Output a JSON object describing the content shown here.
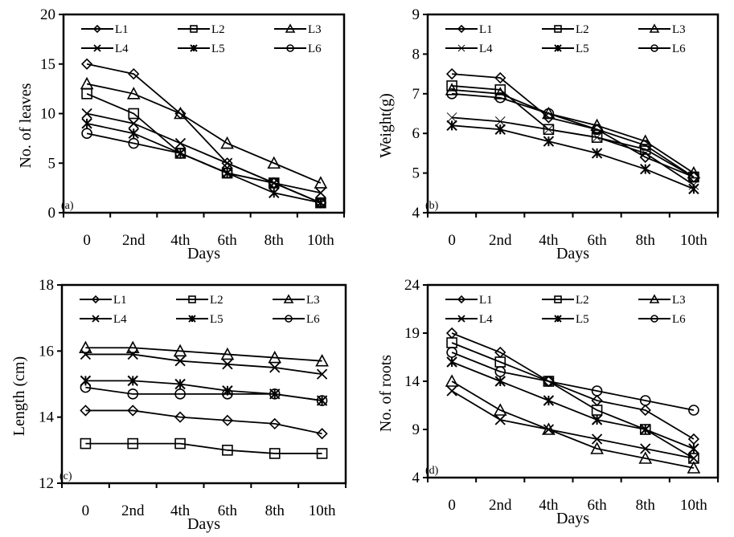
{
  "figure": {
    "panels": 4
  },
  "chart_data": [
    {
      "type": "line",
      "panel_label": "(a)",
      "title": "",
      "xlabel": "Days",
      "ylabel": "No. of leaves",
      "categories": [
        "0",
        "2nd",
        "4th",
        "6th",
        "8th",
        "10th"
      ],
      "ylim": [
        0,
        20
      ],
      "yticks": [
        "0",
        "5",
        "10",
        "15",
        "20"
      ],
      "ytick_values": [
        0,
        5,
        10,
        15,
        20
      ],
      "legend_position": "top",
      "grid": false,
      "series": [
        {
          "name": "L1",
          "marker": "diamond",
          "values": [
            15,
            14,
            10,
            5,
            3,
            1
          ]
        },
        {
          "name": "L2",
          "marker": "square",
          "values": [
            12,
            10,
            6,
            4,
            3,
            1
          ]
        },
        {
          "name": "L3",
          "marker": "triangle",
          "values": [
            13,
            12,
            10,
            7,
            5,
            3
          ]
        },
        {
          "name": "L4",
          "marker": "x",
          "values": [
            10,
            9,
            7,
            5,
            3,
            2
          ]
        },
        {
          "name": "L5",
          "marker": "asterisk",
          "values": [
            9,
            8,
            6,
            4,
            2,
            1
          ]
        },
        {
          "name": "L6",
          "marker": "circle",
          "values": [
            8,
            7,
            6,
            4,
            3,
            1
          ]
        }
      ]
    },
    {
      "type": "line",
      "panel_label": "(b)",
      "title": "",
      "xlabel": "Days",
      "ylabel": "Weight(g)",
      "categories": [
        "0",
        "2nd",
        "4th",
        "6th",
        "8th",
        "10th"
      ],
      "ylim": [
        4,
        9
      ],
      "yticks": [
        "4",
        "5",
        "6",
        "7",
        "8",
        "9"
      ],
      "ytick_values": [
        4,
        5,
        6,
        7,
        8,
        9
      ],
      "legend_position": "top",
      "grid": false,
      "series": [
        {
          "name": "L1",
          "marker": "diamond",
          "values": [
            7.5,
            7.4,
            6.4,
            6.1,
            5.4,
            4.9
          ]
        },
        {
          "name": "L2",
          "marker": "square",
          "values": [
            7.2,
            7.1,
            6.1,
            5.9,
            5.6,
            4.9
          ]
        },
        {
          "name": "L3",
          "marker": "triangle",
          "values": [
            7.1,
            7.0,
            6.5,
            6.2,
            5.8,
            5.0
          ]
        },
        {
          "name": "L4",
          "marker": "x-thin",
          "values": [
            6.4,
            6.3,
            6.1,
            5.9,
            5.5,
            4.7
          ]
        },
        {
          "name": "L5",
          "marker": "asterisk",
          "values": [
            6.2,
            6.1,
            5.8,
            5.5,
            5.1,
            4.6
          ]
        },
        {
          "name": "L6",
          "marker": "circle",
          "values": [
            7.0,
            6.9,
            6.5,
            6.1,
            5.7,
            4.9
          ]
        }
      ]
    },
    {
      "type": "line",
      "panel_label": "(c)",
      "title": "",
      "xlabel": "Days",
      "ylabel": "Length (cm)",
      "categories": [
        "0",
        "2nd",
        "4th",
        "6th",
        "8th",
        "10th"
      ],
      "ylim": [
        12,
        18
      ],
      "yticks": [
        "12",
        "14",
        "16",
        "18"
      ],
      "ytick_values": [
        12,
        14,
        16,
        18
      ],
      "legend_position": "top",
      "grid": false,
      "series": [
        {
          "name": "L1",
          "marker": "diamond",
          "values": [
            14.2,
            14.2,
            14.0,
            13.9,
            13.8,
            13.5
          ]
        },
        {
          "name": "L2",
          "marker": "square",
          "values": [
            13.2,
            13.2,
            13.2,
            13.0,
            12.9,
            12.9
          ]
        },
        {
          "name": "L3",
          "marker": "triangle",
          "values": [
            16.1,
            16.1,
            16.0,
            15.9,
            15.8,
            15.7
          ]
        },
        {
          "name": "L4",
          "marker": "x",
          "values": [
            15.9,
            15.9,
            15.7,
            15.6,
            15.5,
            15.3
          ]
        },
        {
          "name": "L5",
          "marker": "asterisk",
          "values": [
            15.1,
            15.1,
            15.0,
            14.8,
            14.7,
            14.5
          ]
        },
        {
          "name": "L6",
          "marker": "circle",
          "values": [
            14.9,
            14.7,
            14.7,
            14.7,
            14.7,
            14.5
          ]
        }
      ]
    },
    {
      "type": "line",
      "panel_label": "(d)",
      "title": "",
      "xlabel": "Days",
      "ylabel": "No. of roots",
      "categories": [
        "0",
        "2nd",
        "4th",
        "6th",
        "8th",
        "10th"
      ],
      "ylim": [
        4,
        24
      ],
      "yticks": [
        "4",
        "9",
        "14",
        "19",
        "24"
      ],
      "ytick_values": [
        4,
        9,
        14,
        19,
        24
      ],
      "legend_position": "top",
      "grid": false,
      "series": [
        {
          "name": "L1",
          "marker": "diamond",
          "values": [
            19,
            17,
            14,
            12,
            11,
            8
          ]
        },
        {
          "name": "L2",
          "marker": "square",
          "values": [
            18,
            16,
            14,
            11,
            9,
            6
          ]
        },
        {
          "name": "L3",
          "marker": "triangle",
          "values": [
            14,
            11,
            9,
            7,
            6,
            5
          ]
        },
        {
          "name": "L4",
          "marker": "x",
          "values": [
            13,
            10,
            9,
            8,
            7,
            6
          ]
        },
        {
          "name": "L5",
          "marker": "asterisk",
          "values": [
            16,
            14,
            12,
            10,
            9,
            7
          ]
        },
        {
          "name": "L6",
          "marker": "circle",
          "values": [
            17,
            15,
            14,
            13,
            12,
            11
          ]
        }
      ]
    }
  ]
}
